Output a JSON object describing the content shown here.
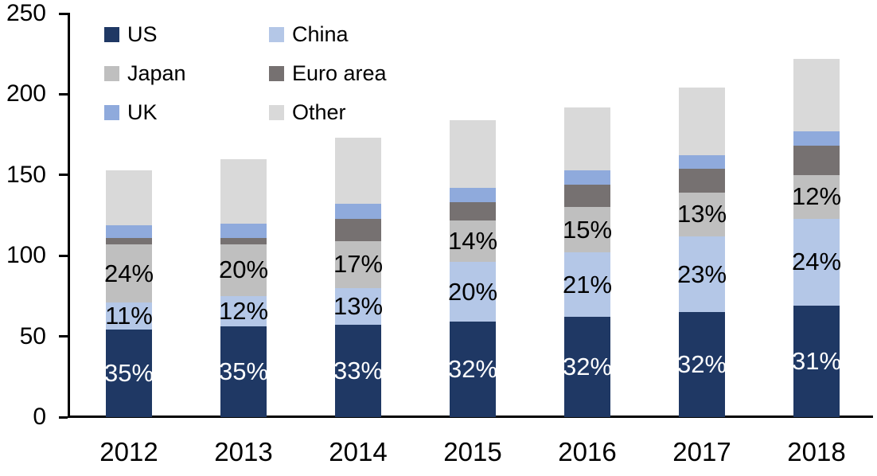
{
  "chart_data": {
    "type": "bar",
    "stacked": true,
    "categories": [
      "2012",
      "2013",
      "2014",
      "2015",
      "2016",
      "2017",
      "2018"
    ],
    "series": [
      {
        "name": "US",
        "color": "#1f3864",
        "values": [
          54,
          56,
          57,
          59,
          62,
          65,
          69
        ],
        "labels": [
          "35%",
          "35%",
          "33%",
          "32%",
          "32%",
          "32%",
          "31%"
        ],
        "label_color": "#ffffff"
      },
      {
        "name": "China",
        "color": "#b4c7e7",
        "values": [
          17,
          19,
          23,
          37,
          40,
          47,
          54
        ],
        "labels": [
          "11%",
          "12%",
          "13%",
          "20%",
          "21%",
          "23%",
          "24%"
        ],
        "label_color": "#000000"
      },
      {
        "name": "Japan",
        "color": "#bfbfbf",
        "values": [
          36,
          32,
          29,
          26,
          28,
          27,
          27
        ],
        "labels": [
          "24%",
          "20%",
          "17%",
          "14%",
          "15%",
          "13%",
          "12%"
        ],
        "label_color": "#000000"
      },
      {
        "name": "Euro area",
        "color": "#767171",
        "values": [
          4,
          4,
          14,
          11,
          14,
          15,
          18
        ]
      },
      {
        "name": "UK",
        "color": "#8faadc",
        "values": [
          8,
          9,
          9,
          9,
          9,
          8,
          9
        ]
      },
      {
        "name": "Other",
        "color": "#d9d9d9",
        "values": [
          34,
          40,
          41,
          42,
          39,
          42,
          45
        ]
      }
    ],
    "totals": [
      153,
      160,
      173,
      184,
      192,
      204,
      222
    ],
    "y_ticks": [
      "0",
      "50",
      "100",
      "150",
      "200",
      "250"
    ],
    "ylim": [
      0,
      250
    ],
    "grid": false,
    "legend_position": "top-left",
    "axis_color": "#000000"
  }
}
